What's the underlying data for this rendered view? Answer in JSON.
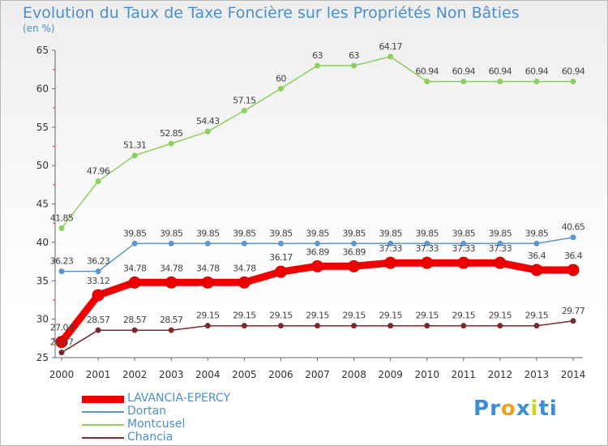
{
  "chart_data": {
    "type": "line",
    "title": "Evolution du Taux de Taxe Foncière sur les Propriétés Non Bâties",
    "subtitle": "(en %)",
    "x": [
      "2000",
      "2001",
      "2002",
      "2003",
      "2004",
      "2005",
      "2006",
      "2007",
      "2008",
      "2009",
      "2010",
      "2011",
      "2012",
      "2013",
      "2014"
    ],
    "ylim": [
      25,
      65
    ],
    "yticks": [
      "25",
      "30",
      "35",
      "40",
      "45",
      "50",
      "55",
      "60",
      "65"
    ],
    "grid": false,
    "legend_position": "bottom-left",
    "series": [
      {
        "name": "LAVANCIA-EPERCY",
        "color": "#ee0000",
        "values": [
          27.04,
          33.12,
          34.78,
          34.78,
          34.78,
          34.78,
          36.17,
          36.89,
          36.89,
          37.33,
          37.33,
          37.33,
          37.33,
          36.4,
          36.4
        ],
        "labels": [
          "27.04",
          "33.12",
          "34.78",
          "34.78",
          "34.78",
          "34.78",
          "36.17",
          "36.89",
          "36.89",
          "37.33",
          "37.33",
          "37.33",
          "37.33",
          "36.4",
          "36.4"
        ]
      },
      {
        "name": "Dortan",
        "color": "#5a98cf",
        "values": [
          36.23,
          36.23,
          39.85,
          39.85,
          39.85,
          39.85,
          39.85,
          39.85,
          39.85,
          39.85,
          39.85,
          39.85,
          39.85,
          39.85,
          40.65
        ],
        "labels": [
          "36.23",
          "36.23",
          "39.85",
          "39.85",
          "39.85",
          "39.85",
          "39.85",
          "39.85",
          "39.85",
          "39.85",
          "39.85",
          "39.85",
          "39.85",
          "39.85",
          "40.65"
        ]
      },
      {
        "name": "Montcusel",
        "color": "#8ccf5c",
        "values": [
          41.85,
          47.96,
          51.31,
          52.85,
          54.43,
          57.15,
          60,
          63,
          63,
          64.17,
          60.94,
          60.94,
          60.94,
          60.94,
          60.94
        ],
        "labels": [
          "41.85",
          "47.96",
          "51.31",
          "52.85",
          "54.43",
          "57.15",
          "60",
          "63",
          "63",
          "64.17",
          "60.94",
          "60.94",
          "60.94",
          "60.94",
          "60.94"
        ]
      },
      {
        "name": "Chancia",
        "color": "#7a2a2a",
        "values": [
          25.67,
          28.57,
          28.57,
          28.57,
          29.15,
          29.15,
          29.15,
          29.15,
          29.15,
          29.15,
          29.15,
          29.15,
          29.15,
          29.15,
          29.77
        ],
        "labels": [
          "25.67",
          "28.57",
          "28.57",
          "28.57",
          "29.15",
          "29.15",
          "29.15",
          "29.15",
          "29.15",
          "29.15",
          "29.15",
          "29.15",
          "29.15",
          "29.15",
          "29.77"
        ]
      }
    ]
  },
  "logo": {
    "letters": [
      "P",
      "r",
      "o",
      "x",
      "i",
      "t",
      "i"
    ],
    "colors": [
      "#3a8fd8",
      "#3a8fd8",
      "#f0a020",
      "#3a8fd8",
      "#c8d820",
      "#3a8fd8",
      "#3a8fd8"
    ]
  }
}
